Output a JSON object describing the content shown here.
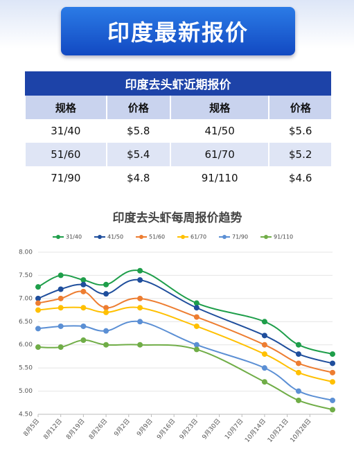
{
  "header": {
    "title": "印度最新报价"
  },
  "table": {
    "title": "印度去头虾近期报价",
    "columns": [
      "规格",
      "价格",
      "规格",
      "价格"
    ],
    "rows": [
      [
        "31/40",
        "$5.8",
        "41/50",
        "$5.6"
      ],
      [
        "51/60",
        "$5.4",
        "61/70",
        "$5.2"
      ],
      [
        "71/90",
        "$4.8",
        "91/110",
        "$4.6"
      ]
    ]
  },
  "chart_data": {
    "type": "line",
    "title": "印度去头虾每周报价趋势",
    "x": [
      0,
      1,
      2,
      3,
      4.5,
      7,
      10,
      11.5,
      13
    ],
    "xlim": [
      0,
      13
    ],
    "xticks": [
      {
        "value": 0,
        "label": "8月5日"
      },
      {
        "value": 1,
        "label": "8月12日"
      },
      {
        "value": 2,
        "label": "8月19日"
      },
      {
        "value": 3,
        "label": "8月26日"
      },
      {
        "value": 4,
        "label": "9月2日"
      },
      {
        "value": 5,
        "label": "9月9日"
      },
      {
        "value": 6,
        "label": "9月16日"
      },
      {
        "value": 7,
        "label": "9月23日"
      },
      {
        "value": 8,
        "label": "9月30日"
      },
      {
        "value": 9,
        "label": "10月7日"
      },
      {
        "value": 10,
        "label": "10月14日"
      },
      {
        "value": 11,
        "label": "10月21日"
      },
      {
        "value": 12,
        "label": "10月28日"
      }
    ],
    "ylim": [
      4.5,
      8.0
    ],
    "yticks": [
      {
        "value": 4.5,
        "label": "4.50"
      },
      {
        "value": 5.0,
        "label": "5.00"
      },
      {
        "value": 5.5,
        "label": "5.50"
      },
      {
        "value": 6.0,
        "label": "6.00"
      },
      {
        "value": 6.5,
        "label": "6.50"
      },
      {
        "value": 7.0,
        "label": "7.00"
      },
      {
        "value": 7.5,
        "label": "7.50"
      },
      {
        "value": 8.0,
        "label": "8.00"
      }
    ],
    "grid": true,
    "legend": "top",
    "series": [
      {
        "name": "31/40",
        "color": "#1e9e4a",
        "values": [
          7.25,
          7.5,
          7.4,
          7.3,
          7.6,
          6.9,
          6.5,
          6.0,
          5.8
        ]
      },
      {
        "name": "41/50",
        "color": "#1f4e9c",
        "values": [
          7.0,
          7.2,
          7.3,
          7.1,
          7.4,
          6.8,
          6.2,
          5.8,
          5.6
        ]
      },
      {
        "name": "51/60",
        "color": "#ed7d31",
        "values": [
          6.9,
          7.0,
          7.15,
          6.8,
          7.0,
          6.6,
          6.0,
          5.6,
          5.4
        ]
      },
      {
        "name": "61/70",
        "color": "#ffc000",
        "values": [
          6.75,
          6.8,
          6.8,
          6.7,
          6.8,
          6.4,
          5.8,
          5.4,
          5.2
        ]
      },
      {
        "name": "71/90",
        "color": "#5b8fd4",
        "values": [
          6.35,
          6.4,
          6.4,
          6.3,
          6.5,
          6.0,
          5.5,
          5.0,
          4.8
        ]
      },
      {
        "name": "91/110",
        "color": "#70ad47",
        "values": [
          5.95,
          5.95,
          6.1,
          6.0,
          6.0,
          5.9,
          5.2,
          4.8,
          4.6
        ]
      }
    ]
  }
}
